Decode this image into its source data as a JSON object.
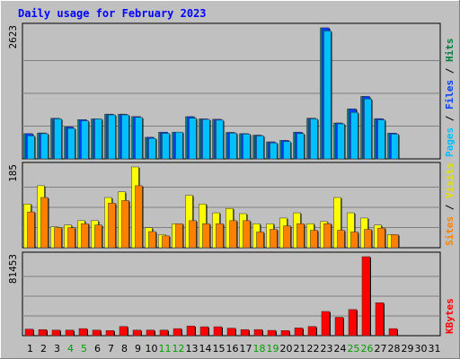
{
  "chart_data": {
    "type": "bar",
    "title": "Daily usage for February 2023",
    "x_days": [
      "1",
      "2",
      "3",
      "4",
      "5",
      "6",
      "7",
      "8",
      "9",
      "10",
      "11",
      "12",
      "13",
      "14",
      "15",
      "16",
      "17",
      "18",
      "19",
      "20",
      "21",
      "22",
      "23",
      "24",
      "25",
      "26",
      "27",
      "28",
      "29",
      "30",
      "31"
    ],
    "weekend_days": [
      "4",
      "5",
      "11",
      "12",
      "18",
      "19",
      "25",
      "26"
    ],
    "panels": [
      {
        "id": "hits",
        "ymax": 2623,
        "ymax_label": "2623",
        "axis_labels": [
          {
            "text": "Hits",
            "color": "#008040"
          },
          {
            "text": "/",
            "color": "#000000"
          },
          {
            "text": "Files",
            "color": "#0040ff"
          },
          {
            "text": "/",
            "color": "#000000"
          },
          {
            "text": "Pages",
            "color": "#00c0ff"
          }
        ],
        "series": [
          {
            "name": "Hits",
            "color": "#008080",
            "values": [
              505,
              518,
              812,
              640,
              786,
              800,
              895,
              895,
              846,
              432,
              535,
              535,
              845,
              800,
              793,
              530,
              505,
              475,
              340,
              370,
              535,
              814,
              2623,
              718,
              1000,
              1250,
              805,
              516,
              0,
              0,
              0
            ]
          },
          {
            "name": "Files",
            "color": "#0040ff",
            "values": [
              505,
              518,
              812,
              640,
              786,
              800,
              895,
              895,
              846,
              432,
              535,
              535,
              845,
              800,
              793,
              530,
              505,
              475,
              340,
              370,
              535,
              814,
              2623,
              718,
              1000,
              1250,
              805,
              516,
              0,
              0,
              0
            ]
          },
          {
            "name": "Pages",
            "color": "#00c0ff",
            "values": [
              460,
              505,
              800,
              610,
              762,
              800,
              880,
              880,
              830,
              410,
              510,
              535,
              815,
              790,
              775,
              515,
              495,
              460,
              320,
              345,
              505,
              800,
              2560,
              700,
              930,
              1200,
              780,
              495,
              0,
              0,
              0
            ]
          }
        ]
      },
      {
        "id": "visits",
        "ymax": 185,
        "ymax_label": "185",
        "axis_labels": [
          {
            "text": "Visits",
            "color": "#e0e000"
          },
          {
            "text": "/",
            "color": "#000000"
          },
          {
            "text": "Sites",
            "color": "#ff8000"
          }
        ],
        "series": [
          {
            "name": "Visits",
            "color": "#ffff00",
            "values": [
              100,
              142,
              48,
              52,
              62,
              62,
              115,
              128,
              185,
              46,
              30,
              55,
              120,
              100,
              80,
              90,
              78,
              55,
              55,
              68,
              80,
              55,
              60,
              115,
              80,
              68,
              52,
              30,
              0,
              0,
              0
            ]
          },
          {
            "name": "Sites",
            "color": "#ff8000",
            "values": [
              82,
              115,
              46,
              46,
              55,
              52,
              102,
              108,
              142,
              37,
              27,
              55,
              62,
              55,
              55,
              62,
              62,
              36,
              42,
              50,
              55,
              40,
              55,
              40,
              36,
              42,
              45,
              30,
              0,
              0,
              0
            ]
          }
        ]
      },
      {
        "id": "kbytes",
        "ymax": 81453,
        "ymax_label": "81453",
        "axis_labels": [
          {
            "text": "KBytes",
            "color": "#ff0000"
          }
        ],
        "series": [
          {
            "name": "KBytes",
            "color": "#ff0000",
            "values": [
              6800,
              6300,
              5800,
              5800,
              7300,
              5800,
              5300,
              9500,
              5800,
              5800,
              5800,
              7300,
              10000,
              9200,
              9200,
              7800,
              6300,
              6300,
              5500,
              5300,
              8000,
              9500,
              25000,
              19000,
              27000,
              81453,
              34000,
              7300,
              0,
              0,
              0
            ]
          }
        ]
      }
    ]
  }
}
